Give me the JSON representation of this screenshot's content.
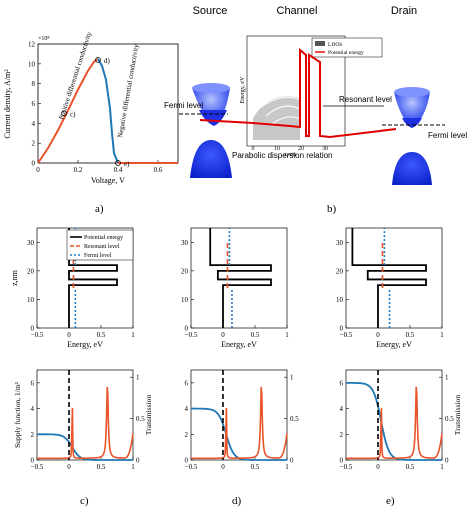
{
  "figure": {
    "panel_labels": [
      "a)",
      "b)",
      "c)",
      "d)",
      "e)"
    ],
    "colors": {
      "red": "#e8542a",
      "blue": "#1f77b4",
      "black": "#000000",
      "dark_red": "#e00000",
      "dot_blue": "#1f78c8"
    }
  },
  "chart_data": [
    {
      "id": "a",
      "type": "line",
      "xlabel": "Voltage, V",
      "ylabel": "Current density, A/m²",
      "y_exponent": "×10⁸",
      "xlim": [
        0,
        0.7
      ],
      "ylim": [
        0,
        12
      ],
      "x_ticks": [
        "0",
        "0.2",
        "0.4",
        "0.6"
      ],
      "y_ticks": [
        "0",
        "2",
        "4",
        "6",
        "8",
        "10",
        "12"
      ],
      "annotations": [
        "Positive differential conductivity",
        "Negative differential conductivity"
      ],
      "points": [
        {
          "label": "c)",
          "x": 0.13,
          "y": 5
        },
        {
          "label": "d)",
          "x": 0.3,
          "y": 10.4
        },
        {
          "label": "e)",
          "x": 0.4,
          "y": 0
        }
      ],
      "series": [
        {
          "x": [
            0,
            0.05,
            0.1,
            0.15,
            0.2,
            0.25,
            0.28,
            0.3
          ],
          "y": [
            0,
            1.5,
            3.3,
            5.3,
            7.4,
            9.3,
            10.2,
            10.5
          ]
        },
        {
          "x": [
            0.3,
            0.32,
            0.34,
            0.36,
            0.37,
            0.38,
            0.4,
            0.7
          ],
          "y": [
            10.5,
            9.8,
            8.4,
            5.5,
            3.0,
            1.0,
            0,
            0
          ]
        }
      ]
    },
    {
      "id": "b",
      "type": "diagram",
      "titles": [
        "Source",
        "Channel",
        "Drain"
      ],
      "labels": [
        "Fermi level",
        "Resonant level",
        "Fermi level",
        "Parabolic dispersion relation"
      ],
      "inset": {
        "xlabel": "z,nm",
        "ylabel": "Energy, eV",
        "x_ticks": [
          "0",
          "10",
          "20",
          "30"
        ],
        "legend": [
          "LDOS",
          "Potential energy"
        ]
      }
    },
    {
      "id": "c_top",
      "type": "line",
      "xlabel": "Energy, eV",
      "ylabel": "z,nm",
      "xlim": [
        -0.5,
        1
      ],
      "ylim": [
        0,
        35
      ],
      "x_ticks": [
        "−0.5",
        "0",
        "0.5",
        "1"
      ],
      "y_ticks": [
        "0",
        "10",
        "20",
        "30"
      ],
      "legend": [
        "Potential energy",
        "Resonant level",
        "Fermi level"
      ],
      "fermi": 0.1,
      "resonant": 0.05,
      "bias": 0.0
    },
    {
      "id": "d_top",
      "type": "line",
      "xlabel": "Energy, eV",
      "xlim": [
        -0.5,
        1
      ],
      "ylim": [
        0,
        35
      ],
      "x_ticks": [
        "−0.5",
        "0",
        "0.5",
        "1"
      ],
      "fermi": 0.1,
      "resonant": 0.05,
      "bias": 0.2
    },
    {
      "id": "e_top",
      "type": "line",
      "xlabel": "Energy, eV",
      "xlim": [
        -0.5,
        1
      ],
      "ylim": [
        0,
        35
      ],
      "x_ticks": [
        "−0.5",
        "0",
        "0.5",
        "1"
      ],
      "fermi": 0.1,
      "resonant": 0.05,
      "bias": 0.4
    },
    {
      "id": "c_bottom",
      "type": "line",
      "ylabel": "Supply function, 1/m²",
      "ylabel_right": "Transmission",
      "xlim": [
        -0.5,
        1
      ],
      "x_ticks": [
        "−0.5",
        "0",
        "0.5",
        "1"
      ],
      "y_ticks": [
        "0",
        "2",
        "4",
        "6"
      ],
      "y_ticks_right": [
        "0",
        "0.5",
        "1"
      ],
      "supply_level": 2,
      "resonance_x": 0.05,
      "peak2_x": 0.6
    },
    {
      "id": "d_bottom",
      "type": "line",
      "xlim": [
        -0.5,
        1
      ],
      "x_ticks": [
        "−0.5",
        "0",
        "0.5",
        "1"
      ],
      "y_ticks": [
        "0",
        "2",
        "4",
        "6"
      ],
      "y_ticks_right": [
        "0",
        "0.5",
        "1"
      ],
      "supply_level": 4,
      "resonance_x": 0.05,
      "peak2_x": 0.6
    },
    {
      "id": "e_bottom",
      "type": "line",
      "ylabel_right": "Transmission",
      "xlim": [
        -0.5,
        1
      ],
      "x_ticks": [
        "−0.5",
        "0",
        "0.5",
        "1"
      ],
      "y_ticks": [
        "0",
        "2",
        "4",
        "6"
      ],
      "y_ticks_right": [
        "0",
        "0.5",
        "1"
      ],
      "supply_level": 6,
      "resonance_x": 0.05,
      "peak2_x": 0.6
    }
  ]
}
